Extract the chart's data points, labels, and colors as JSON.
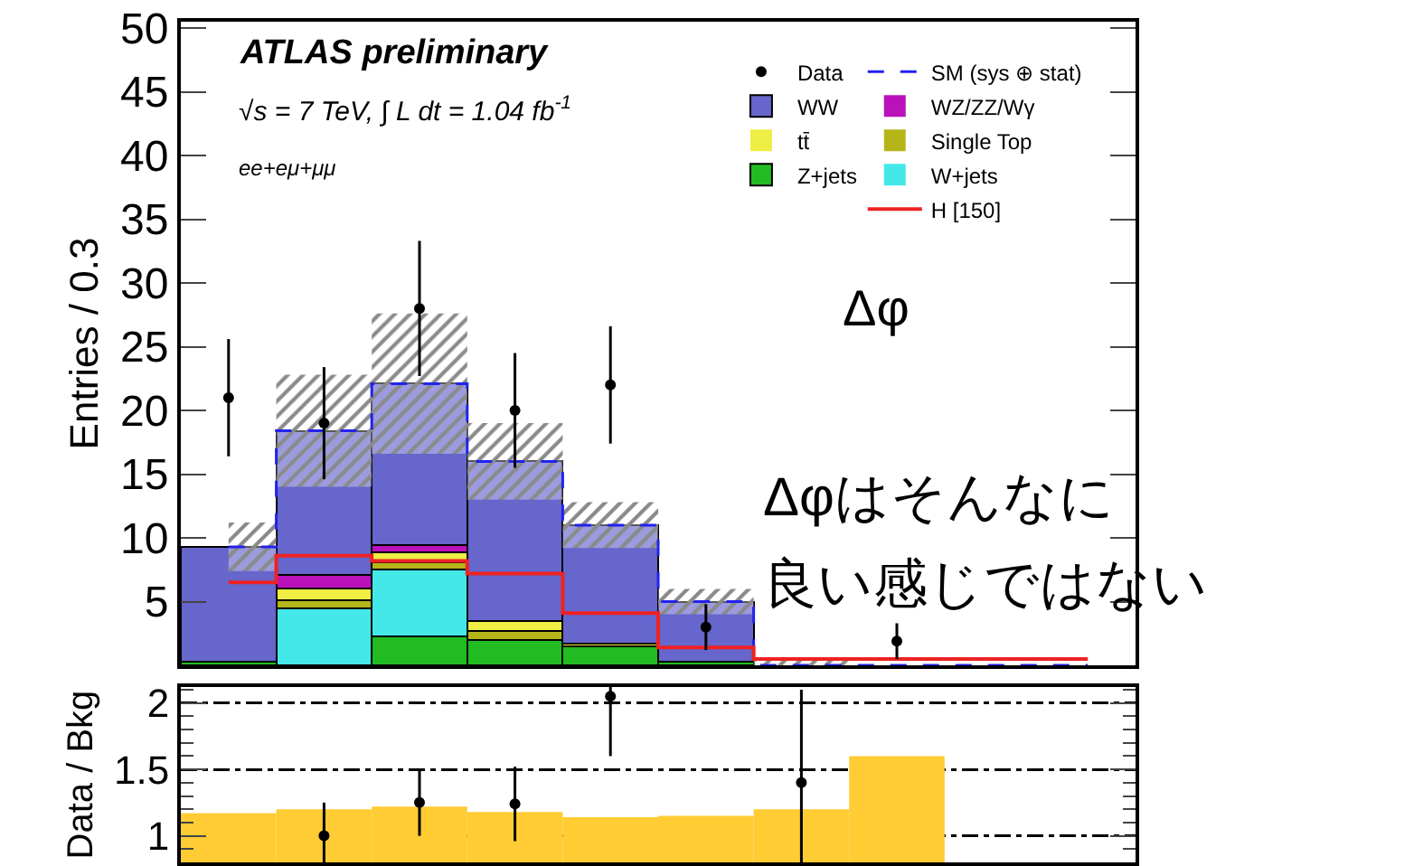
{
  "chart_data": [
    {
      "type": "bar",
      "stacked": true,
      "legend": "top right",
      "ylabel": "Entries / 0.3",
      "categories": [
        null,
        null,
        null,
        null,
        null,
        null,
        null,
        null,
        null,
        null
      ],
      "ylim": [
        0,
        50.5
      ],
      "yticks": [
        5,
        10,
        15,
        20,
        25,
        30,
        35,
        40,
        45,
        50
      ],
      "annotations": [
        "ATLAS preliminary",
        "√s = 7 TeV, ∫ L dt = 1.04 fb$^{-1}$",
        "ee+eμ+μμ",
        "Δφ",
        "Δφはそんなに",
        "良い感じではない"
      ],
      "series": [
        {
          "name": "Z+jets",
          "color": "#22bb22",
          "values": [
            0.3,
            0,
            2.3,
            2.0,
            1.5,
            0.3,
            0,
            0,
            0,
            0
          ]
        },
        {
          "name": "W+jets",
          "color": "#44e8e8",
          "values": [
            0,
            4.5,
            5.2,
            0,
            0,
            0,
            0,
            0,
            0,
            0
          ]
        },
        {
          "name": "Single Top",
          "color": "#b5b51a",
          "values": [
            0,
            0.6,
            0.6,
            0.7,
            0,
            0,
            0,
            0,
            0,
            0
          ]
        },
        {
          "name": "tt̄",
          "color": "#eeee44",
          "values": [
            0,
            0.9,
            0.8,
            0.8,
            0.2,
            0,
            0,
            0,
            0,
            0
          ]
        },
        {
          "name": "WZ/ZZ/Wγ",
          "color": "#bb11bb",
          "values": [
            0,
            1.1,
            0.5,
            0,
            0,
            0,
            0,
            0,
            0,
            0
          ]
        },
        {
          "name": "WW",
          "color": "#6666cc",
          "values": [
            9.0,
            11.3,
            12.7,
            12.5,
            9.3,
            4.7,
            0,
            0,
            0,
            0
          ]
        },
        {
          "name": "SM (sys ⊕ stat)",
          "type": "step",
          "color": "#2222ee",
          "line_style": "dashed",
          "values": [
            9.3,
            18.4,
            22.1,
            16.0,
            11.0,
            5.0,
            0,
            0,
            0,
            0
          ],
          "lower": [
            7.4,
            14.0,
            16.6,
            13.0,
            9.2,
            4.0,
            0,
            0,
            0,
            0
          ],
          "upper": [
            11.2,
            22.8,
            27.6,
            19.0,
            12.8,
            6.0,
            0.5,
            0,
            0,
            0
          ]
        },
        {
          "name": "H [150]",
          "type": "step",
          "color": "#ee2222",
          "values": [
            6.5,
            8.6,
            8.2,
            7.2,
            4.1,
            1.4,
            0.5,
            0.5,
            0.5,
            0.5
          ]
        },
        {
          "name": "Data",
          "type": "scatter",
          "color": "#000000",
          "marker": "circle",
          "values": [
            21,
            19,
            28,
            20,
            22,
            3,
            null,
            1.9,
            null,
            null
          ],
          "errors": [
            4.6,
            4.4,
            5.3,
            4.5,
            4.6,
            1.8,
            null,
            1.4,
            null,
            null
          ]
        }
      ]
    },
    {
      "type": "bar",
      "ylabel": "Data / Bkg",
      "grid": "y",
      "categories": [
        null,
        null,
        null,
        null,
        null,
        null,
        null,
        null,
        null,
        null
      ],
      "ylim": [
        0.8,
        2.12
      ],
      "yticks": [
        1,
        1.5,
        2
      ],
      "series": [
        {
          "color": "#ffcc33",
          "values": [
            1.17,
            1.2,
            1.22,
            1.18,
            1.14,
            1.15,
            1.2,
            1.6,
            null,
            null
          ]
        },
        {
          "type": "scatter",
          "color": "#000000",
          "marker": "circle",
          "values": [
            null,
            1.0,
            1.25,
            1.24,
            2.05,
            null,
            1.4,
            null,
            null,
            null
          ],
          "errors": [
            null,
            0.25,
            0.25,
            0.28,
            0.45,
            null,
            0.7,
            null,
            null,
            null
          ]
        }
      ]
    }
  ]
}
